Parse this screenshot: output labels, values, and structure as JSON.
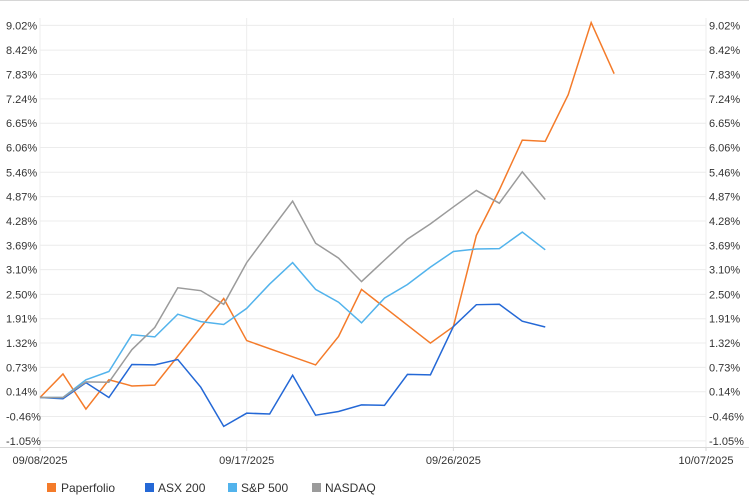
{
  "colors": {
    "grid": "#ececec",
    "axis": "#d6d6d6",
    "text": "#333333"
  },
  "chart_data": {
    "type": "line",
    "title": "",
    "xlabel": "",
    "ylabel": "",
    "grid": true,
    "legend_position": "bottom-left",
    "x": [
      "09/08/2025",
      "09/09/2025",
      "09/10/2025",
      "09/11/2025",
      "09/12/2025",
      "09/13/2025",
      "09/14/2025",
      "09/15/2025",
      "09/16/2025",
      "09/17/2025",
      "09/18/2025",
      "09/19/2025",
      "09/20/2025",
      "09/21/2025",
      "09/22/2025",
      "09/23/2025",
      "09/24/2025",
      "09/25/2025",
      "09/26/2025",
      "09/27/2025",
      "09/28/2025",
      "09/29/2025",
      "09/30/2025",
      "10/01/2025",
      "10/02/2025",
      "10/03/2025",
      "10/04/2025",
      "10/05/2025",
      "10/06/2025",
      "10/07/2025"
    ],
    "x_tick_labels": [
      "09/08/2025",
      "09/17/2025",
      "09/26/2025",
      "10/07/2025"
    ],
    "ylim": [
      -1.2,
      9.2
    ],
    "y_ticks": [
      "9.02%",
      "8.42%",
      "7.83%",
      "7.24%",
      "6.65%",
      "6.06%",
      "5.46%",
      "4.87%",
      "4.28%",
      "3.69%",
      "3.10%",
      "2.50%",
      "1.91%",
      "1.32%",
      "0.73%",
      "0.14%",
      "-0.46%",
      "-1.05%"
    ],
    "y_tick_values": [
      9.02,
      8.42,
      7.83,
      7.24,
      6.65,
      6.06,
      5.46,
      4.87,
      4.28,
      3.69,
      3.1,
      2.5,
      1.91,
      1.32,
      0.73,
      0.14,
      -0.46,
      -1.05
    ],
    "series": [
      {
        "name": "Paperfolio",
        "color": "#f47b2a",
        "points": [
          [
            "09/08/2025",
            0.0
          ],
          [
            "09/09/2025",
            0.57
          ],
          [
            "09/10/2025",
            -0.28
          ],
          [
            "09/11/2025",
            0.43
          ],
          [
            "09/12/2025",
            0.28
          ],
          [
            "09/13/2025",
            0.3
          ],
          [
            "09/16/2025",
            2.4
          ],
          [
            "09/17/2025",
            1.38
          ],
          [
            "09/20/2025",
            0.79
          ],
          [
            "09/21/2025",
            1.48
          ],
          [
            "09/22/2025",
            2.62
          ],
          [
            "09/25/2025",
            1.32
          ],
          [
            "09/26/2025",
            1.72
          ],
          [
            "09/27/2025",
            3.93
          ],
          [
            "09/28/2025",
            5.03
          ],
          [
            "09/29/2025",
            6.24
          ],
          [
            "09/30/2025",
            6.21
          ],
          [
            "10/01/2025",
            7.34
          ],
          [
            "10/02/2025",
            9.09
          ],
          [
            "10/03/2025",
            7.85
          ]
        ]
      },
      {
        "name": "ASX 200",
        "color": "#2468d6",
        "points": [
          [
            "09/08/2025",
            0.0
          ],
          [
            "09/09/2025",
            -0.03
          ],
          [
            "09/10/2025",
            0.36
          ],
          [
            "09/11/2025",
            0.0
          ],
          [
            "09/12/2025",
            0.8
          ],
          [
            "09/13/2025",
            0.79
          ],
          [
            "09/14/2025",
            0.92
          ],
          [
            "09/15/2025",
            0.25
          ],
          [
            "09/16/2025",
            -0.7
          ],
          [
            "09/17/2025",
            -0.38
          ],
          [
            "09/18/2025",
            -0.4
          ],
          [
            "09/19/2025",
            0.54
          ],
          [
            "09/20/2025",
            -0.43
          ],
          [
            "09/21/2025",
            -0.34
          ],
          [
            "09/22/2025",
            -0.18
          ],
          [
            "09/23/2025",
            -0.19
          ],
          [
            "09/24/2025",
            0.56
          ],
          [
            "09/25/2025",
            0.55
          ],
          [
            "09/26/2025",
            1.72
          ],
          [
            "09/27/2025",
            2.25
          ],
          [
            "09/28/2025",
            2.26
          ],
          [
            "09/29/2025",
            1.85
          ],
          [
            "09/30/2025",
            1.71
          ]
        ]
      },
      {
        "name": "S&P 500",
        "color": "#52b3ec",
        "points": [
          [
            "09/08/2025",
            0.0
          ],
          [
            "09/09/2025",
            0.0
          ],
          [
            "09/10/2025",
            0.43
          ],
          [
            "09/11/2025",
            0.63
          ],
          [
            "09/12/2025",
            1.52
          ],
          [
            "09/13/2025",
            1.47
          ],
          [
            "09/14/2025",
            2.02
          ],
          [
            "09/15/2025",
            1.84
          ],
          [
            "09/16/2025",
            1.77
          ],
          [
            "09/17/2025",
            2.16
          ],
          [
            "09/18/2025",
            2.75
          ],
          [
            "09/19/2025",
            3.27
          ],
          [
            "09/20/2025",
            2.62
          ],
          [
            "09/21/2025",
            2.31
          ],
          [
            "09/22/2025",
            1.81
          ],
          [
            "09/23/2025",
            2.41
          ],
          [
            "09/24/2025",
            2.74
          ],
          [
            "09/25/2025",
            3.16
          ],
          [
            "09/26/2025",
            3.54
          ],
          [
            "09/27/2025",
            3.6
          ],
          [
            "09/28/2025",
            3.61
          ],
          [
            "09/29/2025",
            4.01
          ],
          [
            "09/30/2025",
            3.58
          ]
        ]
      },
      {
        "name": "NASDAQ",
        "color": "#9b9b9b",
        "points": [
          [
            "09/08/2025",
            0.0
          ],
          [
            "09/09/2025",
            0.0
          ],
          [
            "09/10/2025",
            0.38
          ],
          [
            "09/11/2025",
            0.37
          ],
          [
            "09/12/2025",
            1.16
          ],
          [
            "09/13/2025",
            1.7
          ],
          [
            "09/14/2025",
            2.66
          ],
          [
            "09/15/2025",
            2.59
          ],
          [
            "09/16/2025",
            2.26
          ],
          [
            "09/17/2025",
            3.27
          ],
          [
            "09/18/2025",
            4.02
          ],
          [
            "09/19/2025",
            4.76
          ],
          [
            "09/20/2025",
            3.74
          ],
          [
            "09/21/2025",
            3.38
          ],
          [
            "09/22/2025",
            2.81
          ],
          [
            "09/23/2025",
            3.33
          ],
          [
            "09/24/2025",
            3.84
          ],
          [
            "09/25/2025",
            4.21
          ],
          [
            "09/26/2025",
            4.62
          ],
          [
            "09/27/2025",
            5.02
          ],
          [
            "09/28/2025",
            4.71
          ],
          [
            "09/29/2025",
            5.47
          ],
          [
            "09/30/2025",
            4.8
          ]
        ]
      }
    ]
  },
  "legend": [
    {
      "label": "Paperfolio"
    },
    {
      "label": "ASX 200"
    },
    {
      "label": "S&P 500"
    },
    {
      "label": "NASDAQ"
    }
  ]
}
